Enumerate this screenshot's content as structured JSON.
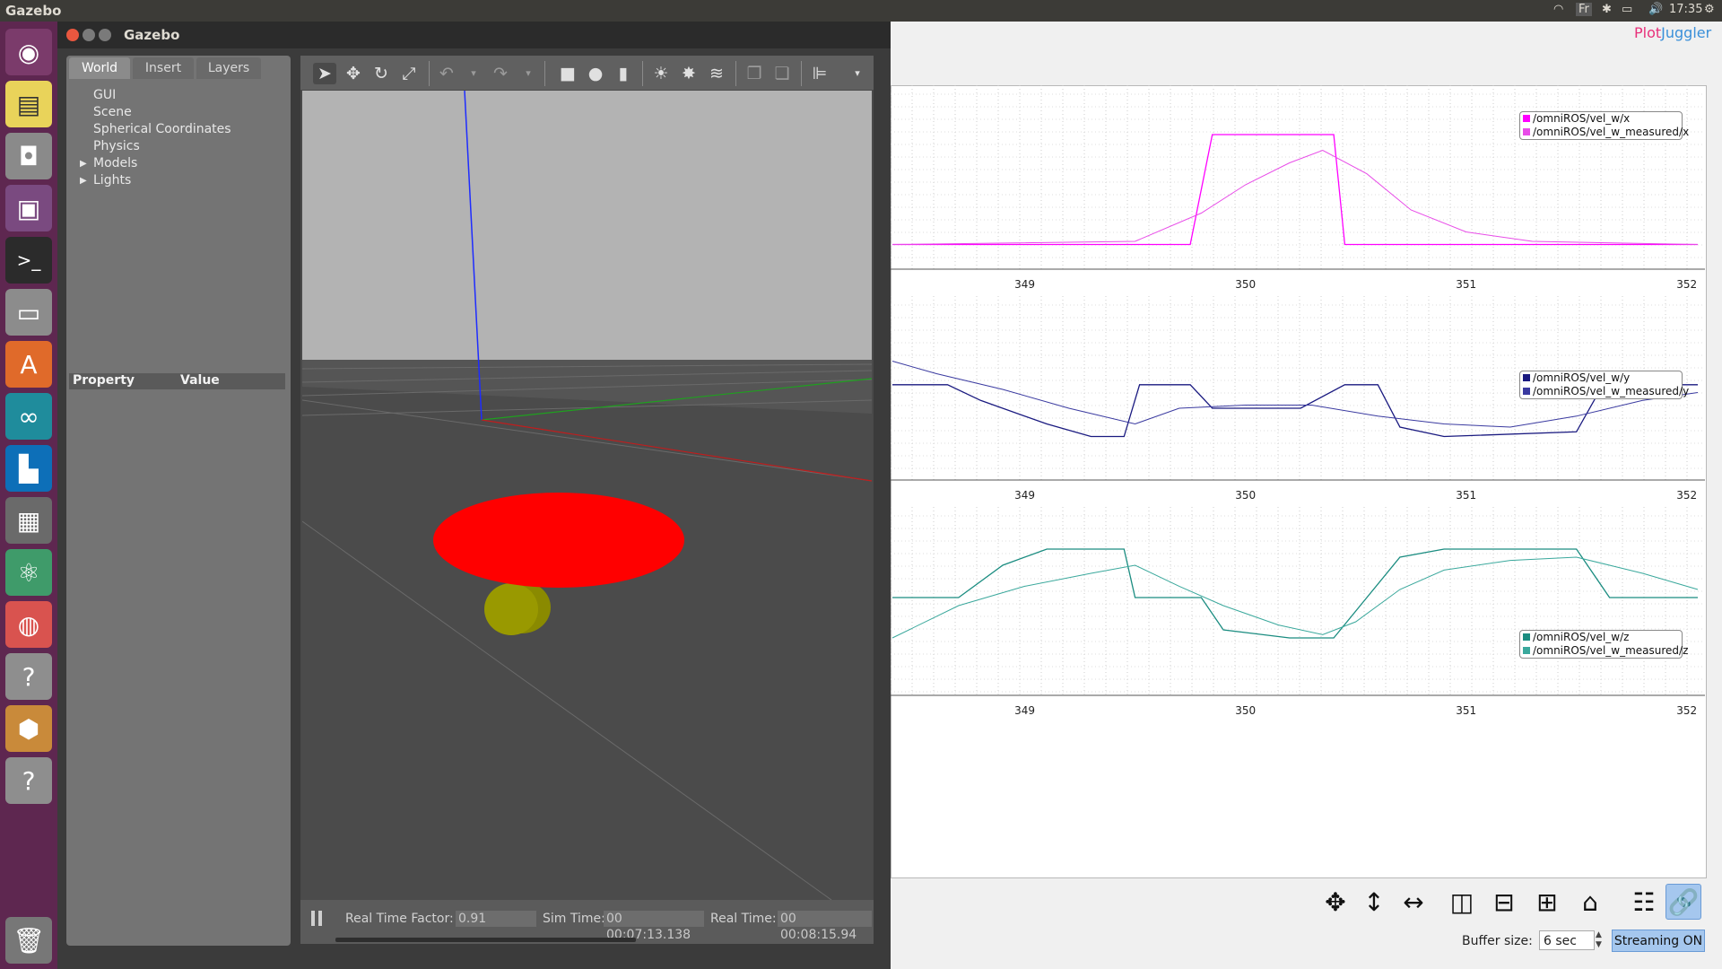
{
  "topbar": {
    "app_name": "Gazebo",
    "keyboard": "Fr",
    "time": "17:35"
  },
  "launcher": {
    "items": [
      "ubuntu-dash",
      "notes",
      "camera",
      "screen-recorder",
      "terminal",
      "files",
      "software-center",
      "arduino",
      "trello",
      "calculator",
      "atom",
      "firefox",
      "help",
      "package",
      "help-2"
    ],
    "trash": "trash"
  },
  "gazebo": {
    "title": "Gazebo",
    "tabs": [
      "World",
      "Insert",
      "Layers"
    ],
    "tree": [
      "GUI",
      "Scene",
      "Spherical Coordinates",
      "Physics",
      "Models",
      "Lights"
    ],
    "property_header": "Property",
    "value_header": "Value",
    "status": {
      "real_time_factor_label": "Real Time Factor:",
      "real_time_factor": "0.91",
      "sim_time_label": "Sim Time:",
      "sim_time": "00 00:07:13.138",
      "real_time_label": "Real Time:",
      "real_time": "00 00:08:15.94"
    }
  },
  "plotjuggler": {
    "logo_a": "Plot",
    "logo_b": "Juggler",
    "buffer_label": "Buffer size:",
    "buffer_value": "6 sec",
    "streaming_label": "Streaming ON",
    "tick_labels": [
      "349",
      "350",
      "351",
      "352"
    ]
  },
  "chart_data": [
    {
      "type": "line",
      "title": "",
      "x_ticks": [
        349,
        350,
        351,
        352
      ],
      "series": [
        {
          "name": "/omniROS/vel_w/x",
          "color": "#ff00ff"
        },
        {
          "name": "/omniROS/vel_w_measured/x",
          "color": "#e84ce8"
        }
      ],
      "shape": {
        "vel_w": [
          [
            348.4,
            0.1
          ],
          [
            349.75,
            0.1
          ],
          [
            349.85,
            0.8
          ],
          [
            350.0,
            0.8
          ],
          [
            350.4,
            0.8
          ],
          [
            350.45,
            0.1
          ],
          [
            352.05,
            0.1
          ]
        ],
        "measured": [
          [
            348.4,
            0.1
          ],
          [
            349.5,
            0.12
          ],
          [
            349.8,
            0.3
          ],
          [
            350.0,
            0.48
          ],
          [
            350.2,
            0.62
          ],
          [
            350.35,
            0.7
          ],
          [
            350.55,
            0.55
          ],
          [
            350.75,
            0.32
          ],
          [
            351.0,
            0.18
          ],
          [
            351.3,
            0.12
          ],
          [
            352.05,
            0.1
          ]
        ]
      }
    },
    {
      "type": "line",
      "title": "",
      "x_ticks": [
        349,
        350,
        351,
        352
      ],
      "series": [
        {
          "name": "/omniROS/vel_w/y",
          "color": "#1a1a80"
        },
        {
          "name": "/omniROS/vel_w_measured/y",
          "color": "#3a3aa0"
        }
      ],
      "shape": {
        "vel_w": [
          [
            348.4,
            0.55
          ],
          [
            348.65,
            0.55
          ],
          [
            348.8,
            0.45
          ],
          [
            349.1,
            0.3
          ],
          [
            349.3,
            0.22
          ],
          [
            349.45,
            0.22
          ],
          [
            349.52,
            0.55
          ],
          [
            349.75,
            0.55
          ],
          [
            349.85,
            0.4
          ],
          [
            350.15,
            0.4
          ],
          [
            350.25,
            0.4
          ],
          [
            350.45,
            0.55
          ],
          [
            350.6,
            0.55
          ],
          [
            350.7,
            0.28
          ],
          [
            350.9,
            0.22
          ],
          [
            351.5,
            0.25
          ],
          [
            351.62,
            0.55
          ],
          [
            352.05,
            0.55
          ]
        ],
        "measured": [
          [
            348.4,
            0.7
          ],
          [
            348.6,
            0.62
          ],
          [
            348.9,
            0.52
          ],
          [
            349.2,
            0.4
          ],
          [
            349.5,
            0.3
          ],
          [
            349.7,
            0.4
          ],
          [
            350.0,
            0.42
          ],
          [
            350.3,
            0.42
          ],
          [
            350.6,
            0.35
          ],
          [
            350.9,
            0.3
          ],
          [
            351.2,
            0.28
          ],
          [
            351.5,
            0.35
          ],
          [
            351.8,
            0.45
          ],
          [
            352.05,
            0.5
          ]
        ]
      }
    },
    {
      "type": "line",
      "title": "",
      "x_ticks": [
        349,
        350,
        351,
        352
      ],
      "series": [
        {
          "name": "/omniROS/vel_w/z",
          "color": "#1a8c80"
        },
        {
          "name": "/omniROS/vel_w_measured/z",
          "color": "#3aa89c"
        }
      ],
      "shape": {
        "vel_w": [
          [
            348.4,
            0.55
          ],
          [
            348.7,
            0.55
          ],
          [
            348.9,
            0.75
          ],
          [
            349.1,
            0.85
          ],
          [
            349.45,
            0.85
          ],
          [
            349.5,
            0.55
          ],
          [
            349.8,
            0.55
          ],
          [
            349.9,
            0.35
          ],
          [
            350.2,
            0.3
          ],
          [
            350.4,
            0.3
          ],
          [
            350.55,
            0.55
          ],
          [
            350.7,
            0.8
          ],
          [
            350.9,
            0.85
          ],
          [
            351.5,
            0.85
          ],
          [
            351.65,
            0.55
          ],
          [
            352.05,
            0.55
          ]
        ],
        "measured": [
          [
            348.4,
            0.3
          ],
          [
            348.7,
            0.5
          ],
          [
            349.0,
            0.62
          ],
          [
            349.3,
            0.7
          ],
          [
            349.5,
            0.75
          ],
          [
            349.7,
            0.62
          ],
          [
            349.9,
            0.5
          ],
          [
            350.15,
            0.38
          ],
          [
            350.35,
            0.32
          ],
          [
            350.5,
            0.4
          ],
          [
            350.7,
            0.6
          ],
          [
            350.9,
            0.72
          ],
          [
            351.2,
            0.78
          ],
          [
            351.5,
            0.8
          ],
          [
            351.8,
            0.7
          ],
          [
            352.05,
            0.6
          ]
        ]
      }
    }
  ]
}
